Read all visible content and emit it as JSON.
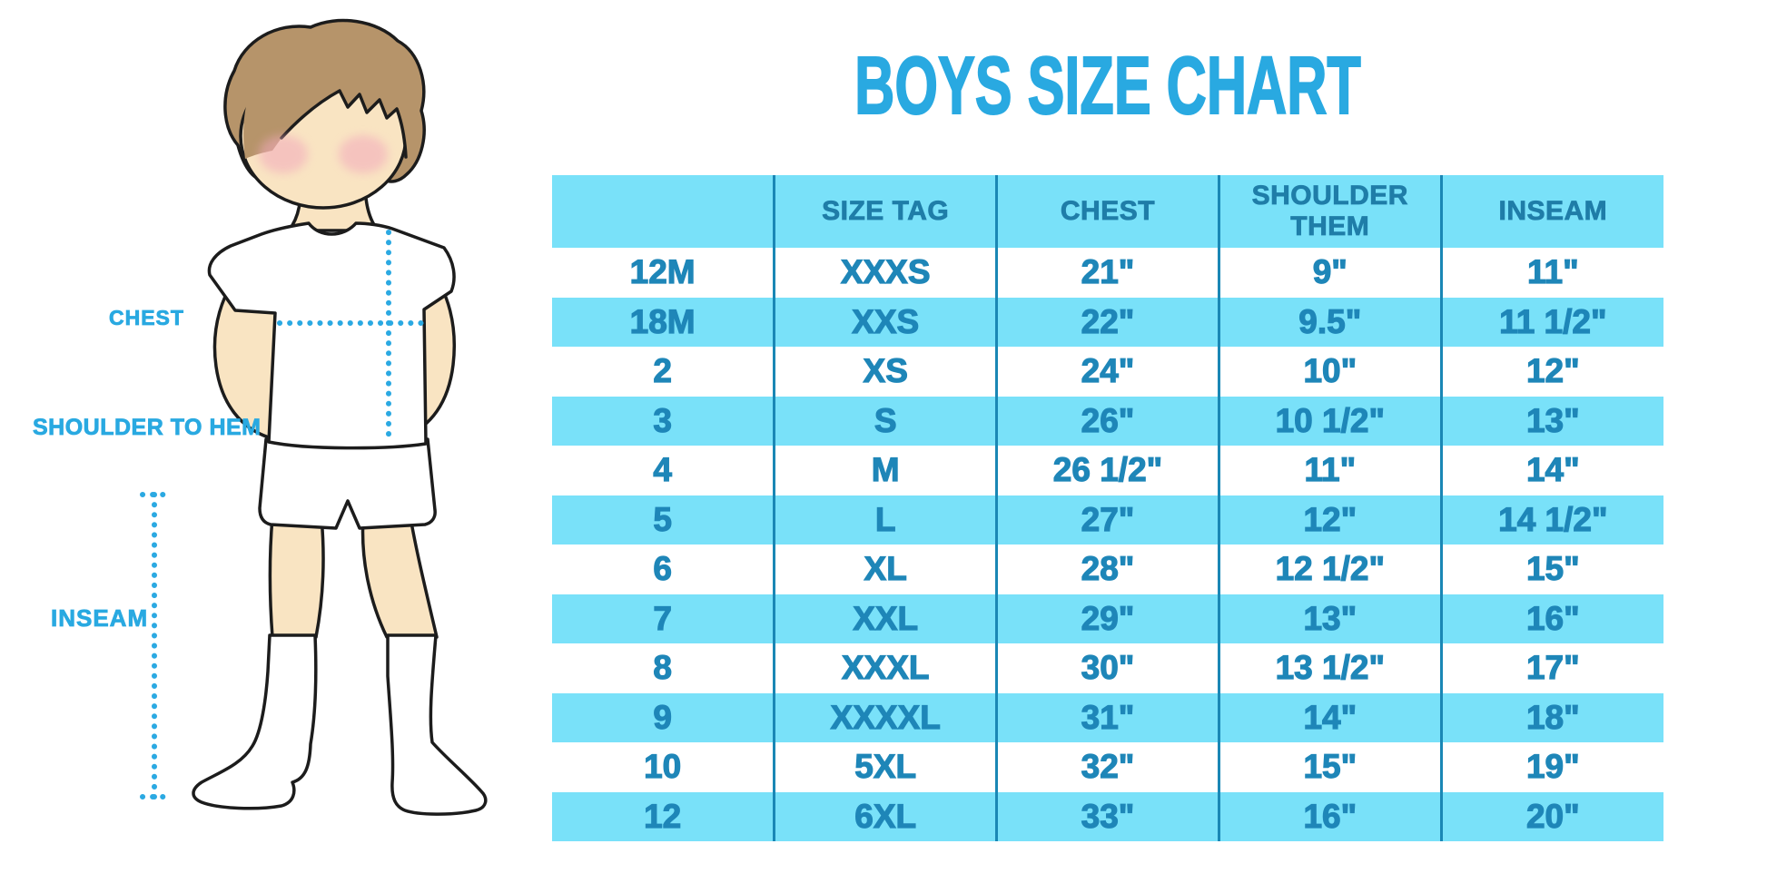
{
  "chart_data": {
    "type": "table",
    "title": "BOYS SIZE CHART",
    "columns": [
      "",
      "SIZE TAG",
      "CHEST",
      "SHOULDER THEM",
      "INSEAM"
    ],
    "rows": [
      [
        "12M",
        "XXXS",
        "21\"",
        "9\"",
        "11\""
      ],
      [
        "18M",
        "XXS",
        "22\"",
        "9.5\"",
        "11 1/2\""
      ],
      [
        "2",
        "XS",
        "24\"",
        "10\"",
        "12\""
      ],
      [
        "3",
        "S",
        "26\"",
        "10 1/2\"",
        "13\""
      ],
      [
        "4",
        "M",
        "26 1/2\"",
        "11\"",
        "14\""
      ],
      [
        "5",
        "L",
        "27\"",
        "12\"",
        "14 1/2\""
      ],
      [
        "6",
        "XL",
        "28\"",
        "12 1/2\"",
        "15\""
      ],
      [
        "7",
        "XXL",
        "29\"",
        "13\"",
        "16\""
      ],
      [
        "8",
        "XXXL",
        "30\"",
        "13 1/2\"",
        "17\""
      ],
      [
        "9",
        "XXXXL",
        "31\"",
        "14\"",
        "18\""
      ],
      [
        "10",
        "5XL",
        "32\"",
        "15\"",
        "19\""
      ],
      [
        "12",
        "6XL",
        "33\"",
        "16\"",
        "20\""
      ]
    ],
    "layout_hints": {
      "stripe_pattern": "header cyan; data rows alternate white/cyan starting white",
      "column_dividers": "vertical dark blue lines only, no horizontal borders"
    }
  },
  "figure": {
    "chest_label": "CHEST",
    "shoulder_to_hem_label": "SHOULDER TO HEM",
    "inseam_label": "INSEAM"
  },
  "colors": {
    "accent_blue": "#29A9E1",
    "stripe_cyan": "#79E1F9",
    "divider_blue": "#1A87B5",
    "cell_text_blue": "#1E86B8",
    "header_text_blue": "#1F7DA8",
    "dotted_line_blue": "#2BA9E2",
    "skin": "#F9E4C2",
    "hair_brown": "#B6946A",
    "blush_pink": "#F2A9BC"
  }
}
